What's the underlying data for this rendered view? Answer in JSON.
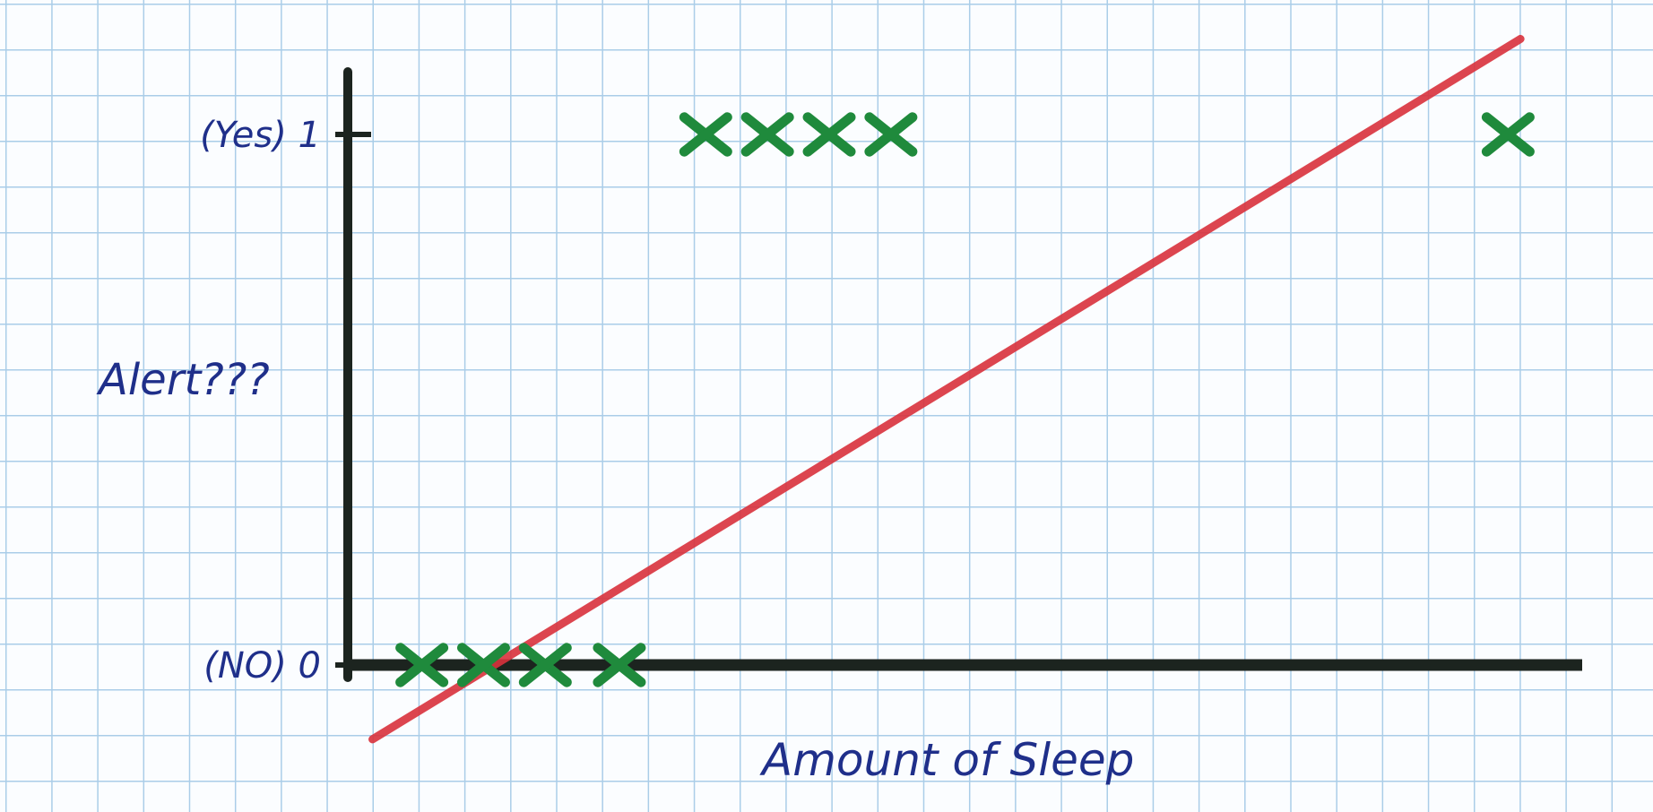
{
  "chart_data": {
    "type": "scatter",
    "title": "",
    "xlabel": "Amount of Sleep",
    "ylabel": "Alert???",
    "y_ticks": [
      {
        "value": 1,
        "label": "(Yes) 1"
      },
      {
        "value": 0,
        "label": "(NO) 0"
      }
    ],
    "ylim": [
      -0.15,
      1.15
    ],
    "xlim": [
      0,
      10
    ],
    "grid": true,
    "legend": "none",
    "series": [
      {
        "marker": "x",
        "color": "#1f8a3c",
        "points": [
          {
            "x": 0.6,
            "y": 0
          },
          {
            "x": 1.1,
            "y": 0
          },
          {
            "x": 1.6,
            "y": 0
          },
          {
            "x": 2.2,
            "y": 0
          },
          {
            "x": 2.9,
            "y": 1
          },
          {
            "x": 3.4,
            "y": 1
          },
          {
            "x": 3.9,
            "y": 1
          },
          {
            "x": 4.4,
            "y": 1
          },
          {
            "x": 9.4,
            "y": 1
          }
        ]
      }
    ],
    "fit_line": {
      "color": "#d9323c",
      "from": {
        "x": 0.2,
        "y": -0.14
      },
      "to": {
        "x": 9.5,
        "y": 1.18
      }
    },
    "colors": {
      "axis": "#1c241f",
      "label_ink": "#1f2f8a",
      "grid": "#aacde8"
    }
  }
}
